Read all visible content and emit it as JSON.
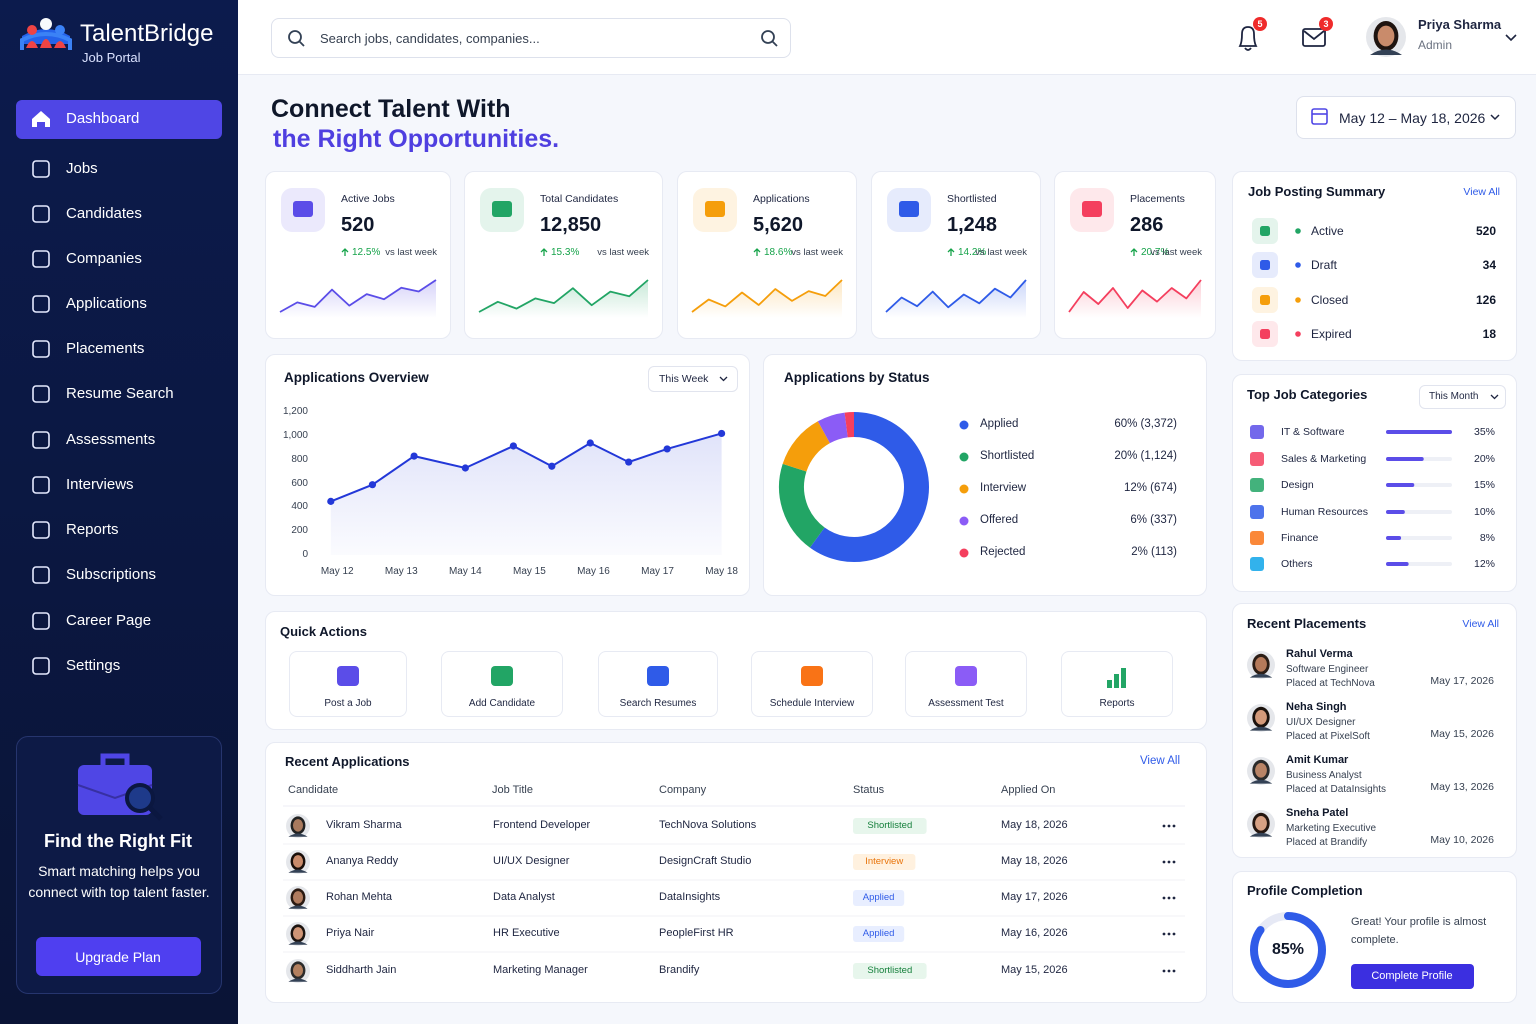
{
  "brand": {
    "name": "TalentBridge",
    "tagline": "Job Portal"
  },
  "nav": [
    "Dashboard",
    "Jobs",
    "Candidates",
    "Companies",
    "Applications",
    "Placements",
    "Resume Search",
    "Assessments",
    "Interviews",
    "Reports",
    "Subscriptions",
    "Career Page",
    "Settings"
  ],
  "promo": {
    "title": "Find the Right Fit",
    "text": "Smart matching helps you connect with top talent faster.",
    "button": "Upgrade Plan"
  },
  "header": {
    "search_placeholder": "Search jobs, candidates, companies...",
    "notifications": 5,
    "messages": 3,
    "user_name": "Priya Sharma",
    "user_role": "Admin"
  },
  "hero": {
    "line1": "Connect Talent With",
    "line2": "the Right Opportunities.",
    "date_range": "May 12 – May 18, 2026"
  },
  "stats": [
    {
      "label": "Active Jobs",
      "value": "520",
      "change": "12.5%",
      "change_note": "vs last week",
      "color": "#5b4de8",
      "spark": [
        20,
        35,
        28,
        55,
        30,
        48,
        40,
        58,
        52,
        70
      ]
    },
    {
      "label": "Total Candidates",
      "value": "12,850",
      "change": "15.3%",
      "change_note": "vs last week",
      "color": "#22a565",
      "spark": [
        25,
        40,
        30,
        45,
        38,
        60,
        35,
        55,
        48,
        72
      ]
    },
    {
      "label": "Applications",
      "value": "5,620",
      "change": "18.6%",
      "change_note": "vs last week",
      "color": "#f59e0b",
      "spark": [
        22,
        40,
        30,
        50,
        32,
        55,
        38,
        52,
        45,
        68
      ]
    },
    {
      "label": "Shortlisted",
      "value": "1,248",
      "change": "14.2%",
      "change_note": "vs last week",
      "color": "#2f5be8",
      "spark": [
        20,
        45,
        30,
        55,
        28,
        50,
        35,
        60,
        45,
        75
      ]
    },
    {
      "label": "Placements",
      "value": "286",
      "change": "20.7%",
      "change_note": "vs last week",
      "color": "#f43f5e",
      "spark": [
        25,
        50,
        35,
        55,
        30,
        52,
        38,
        55,
        42,
        65
      ]
    }
  ],
  "chart_data": [
    {
      "type": "line",
      "title": "Applications Overview",
      "filter": "This Week",
      "x": [
        -0.1,
        0.55,
        1.2,
        2,
        2.75,
        3.35,
        3.95,
        4.55,
        5.15,
        6
      ],
      "values": [
        450,
        590,
        830,
        730,
        915,
        745,
        940,
        780,
        890,
        1020
      ],
      "color": "#2338d8",
      "xlim": [
        -0.3,
        6.1
      ],
      "xticks": [
        {
          "value": 0,
          "label": "May 12"
        },
        {
          "value": 1,
          "label": "May 13"
        },
        {
          "value": 2,
          "label": "May 14"
        },
        {
          "value": 3,
          "label": "May 15"
        },
        {
          "value": 4,
          "label": "May 16"
        },
        {
          "value": 5,
          "label": "May 17"
        },
        {
          "value": 6,
          "label": "May 18"
        }
      ],
      "ylim": [
        0,
        1200
      ],
      "yticks": [
        0,
        200,
        400,
        600,
        800,
        {
          "value": 1000,
          "label": "1,000"
        },
        {
          "value": 1200,
          "label": "1,200"
        }
      ],
      "grid": false
    },
    {
      "type": "donut",
      "title": "Applications by Status",
      "categories": [
        "Applied",
        "Shortlisted",
        "Interview",
        "Offered",
        "Rejected"
      ],
      "values": [
        60,
        20,
        12,
        6,
        2
      ],
      "value_labels": [
        "60% (3,372)",
        "20% (1,124)",
        "12% (674)",
        "6% (337)",
        "2% (113)"
      ],
      "colors": [
        "#2f5be8",
        "#22a565",
        "#f59e0b",
        "#8b5cf6",
        "#f43f5e"
      ]
    }
  ],
  "job_summary": {
    "title": "Job Posting Summary",
    "link": "View All",
    "items": [
      {
        "label": "Active",
        "value": "520",
        "color": "#22a565"
      },
      {
        "label": "Draft",
        "value": "34",
        "color": "#2f5be8"
      },
      {
        "label": "Closed",
        "value": "126",
        "color": "#f59e0b"
      },
      {
        "label": "Expired",
        "value": "18",
        "color": "#f43f5e"
      }
    ]
  },
  "categories": {
    "title": "Top Job Categories",
    "filter": "This Month",
    "color": "#5b4de8",
    "items": [
      {
        "label": "IT & Software",
        "value": 35,
        "value_label": "35%"
      },
      {
        "label": "Sales & Marketing",
        "value": 20,
        "value_label": "20%"
      },
      {
        "label": "Design",
        "value": 15,
        "value_label": "15%"
      },
      {
        "label": "Human Resources",
        "value": 10,
        "value_label": "10%"
      },
      {
        "label": "Finance",
        "value": 8,
        "value_label": "8%"
      },
      {
        "label": "Others",
        "value": 12,
        "value_label": "12%"
      }
    ]
  },
  "quick_actions": {
    "title": "Quick Actions",
    "items": [
      "Post a Job",
      "Add Candidate",
      "Search Resumes",
      "Schedule Interview",
      "Assessment Test",
      "Reports"
    ]
  },
  "recent_applications": {
    "title": "Recent Applications",
    "link": "View All",
    "columns": [
      "Candidate",
      "Job Title",
      "Company",
      "Status",
      "Applied On"
    ],
    "rows": [
      [
        "Vikram Sharma",
        "Frontend Developer",
        "TechNova Solutions",
        "Shortlisted",
        "May 18, 2026"
      ],
      [
        "Ananya Reddy",
        "UI/UX Designer",
        "DesignCraft Studio",
        "Interview",
        "May 18, 2026"
      ],
      [
        "Rohan Mehta",
        "Data Analyst",
        "DataInsights",
        "Applied",
        "May 17, 2026"
      ],
      [
        "Priya Nair",
        "HR Executive",
        "PeopleFirst HR",
        "Applied",
        "May 16, 2026"
      ],
      [
        "Siddharth Jain",
        "Marketing Manager",
        "Brandify",
        "Shortlisted",
        "May 15, 2026"
      ]
    ]
  },
  "recent_placements": {
    "title": "Recent Placements",
    "link": "View All",
    "items": [
      {
        "name": "Rahul Verma",
        "role": "Software Engineer",
        "company": "Placed at TechNova",
        "date": "May 17, 2026"
      },
      {
        "name": "Neha Singh",
        "role": "UI/UX Designer",
        "company": "Placed at PixelSoft",
        "date": "May 15, 2026"
      },
      {
        "name": "Amit Kumar",
        "role": "Business Analyst",
        "company": "Placed at DataInsights",
        "date": "May 13, 2026"
      },
      {
        "name": "Sneha Patel",
        "role": "Marketing Executive",
        "company": "Placed at Brandify",
        "date": "May 10, 2026"
      }
    ]
  },
  "profile": {
    "title": "Profile Completion",
    "percent": 85,
    "percent_label": "85%",
    "text": "Great! Your profile is almost complete.",
    "button": "Complete Profile"
  }
}
